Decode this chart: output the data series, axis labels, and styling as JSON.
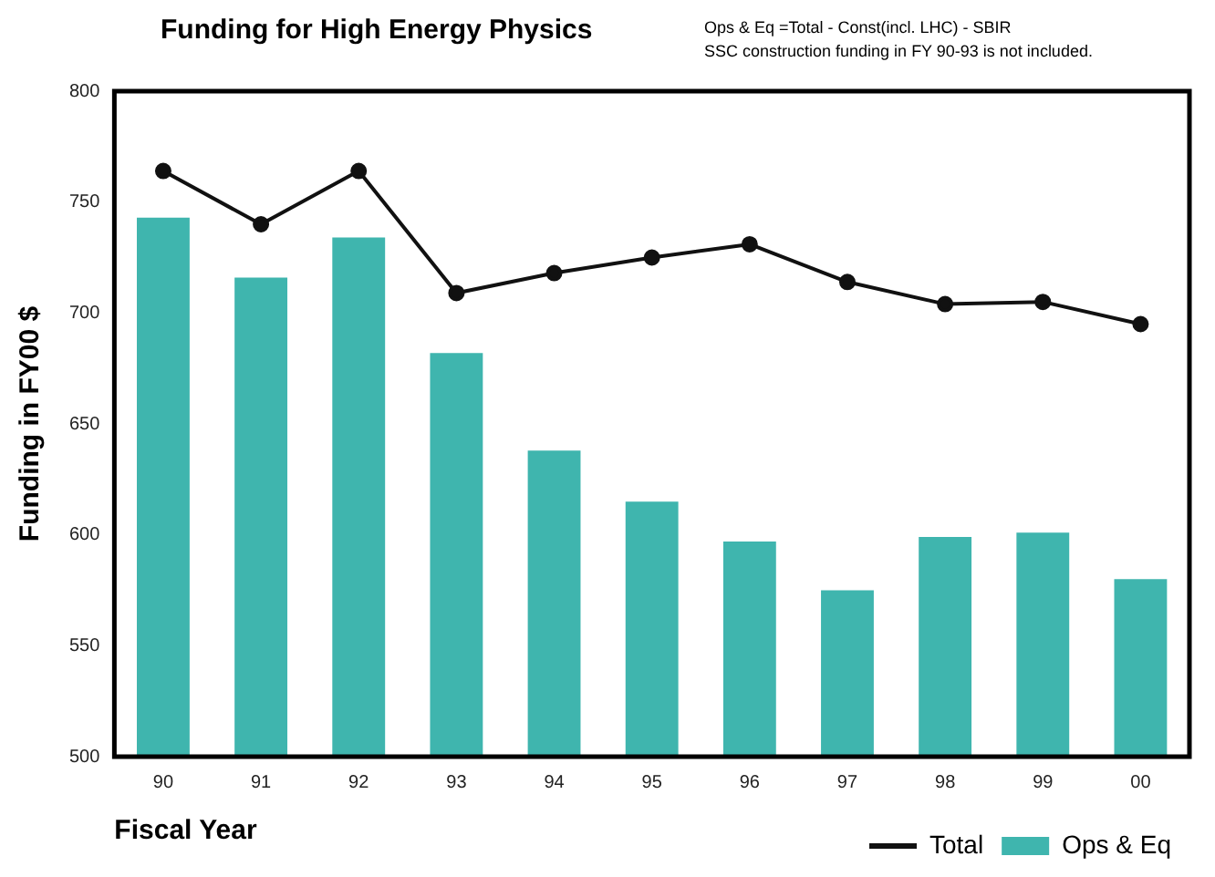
{
  "chart_data": {
    "type": "bar",
    "title": "Funding for High Energy Physics",
    "annotations": [
      "Ops & Eq =Total - Const(incl. LHC) - SBIR",
      "SSC construction funding in FY 90-93 is not included."
    ],
    "xlabel": "Fiscal Year",
    "ylabel": "Funding in FY00 $",
    "categories": [
      "90",
      "91",
      "92",
      "93",
      "94",
      "95",
      "96",
      "97",
      "98",
      "99",
      "00"
    ],
    "series": [
      {
        "name": "Total",
        "type": "line",
        "color": "#111111",
        "values": [
          764,
          740,
          764,
          709,
          718,
          725,
          731,
          714,
          704,
          705,
          695
        ]
      },
      {
        "name": "Ops & Eq",
        "type": "bar",
        "color": "#3fb5ae",
        "values": [
          743,
          716,
          734,
          682,
          638,
          615,
          597,
          575,
          599,
          601,
          580
        ]
      }
    ],
    "ylim": [
      500,
      800
    ],
    "yticks": [
      500,
      550,
      600,
      650,
      700,
      750,
      800
    ],
    "grid": false,
    "legend": "bottom right",
    "marker": "circle",
    "line_style": "solid"
  }
}
